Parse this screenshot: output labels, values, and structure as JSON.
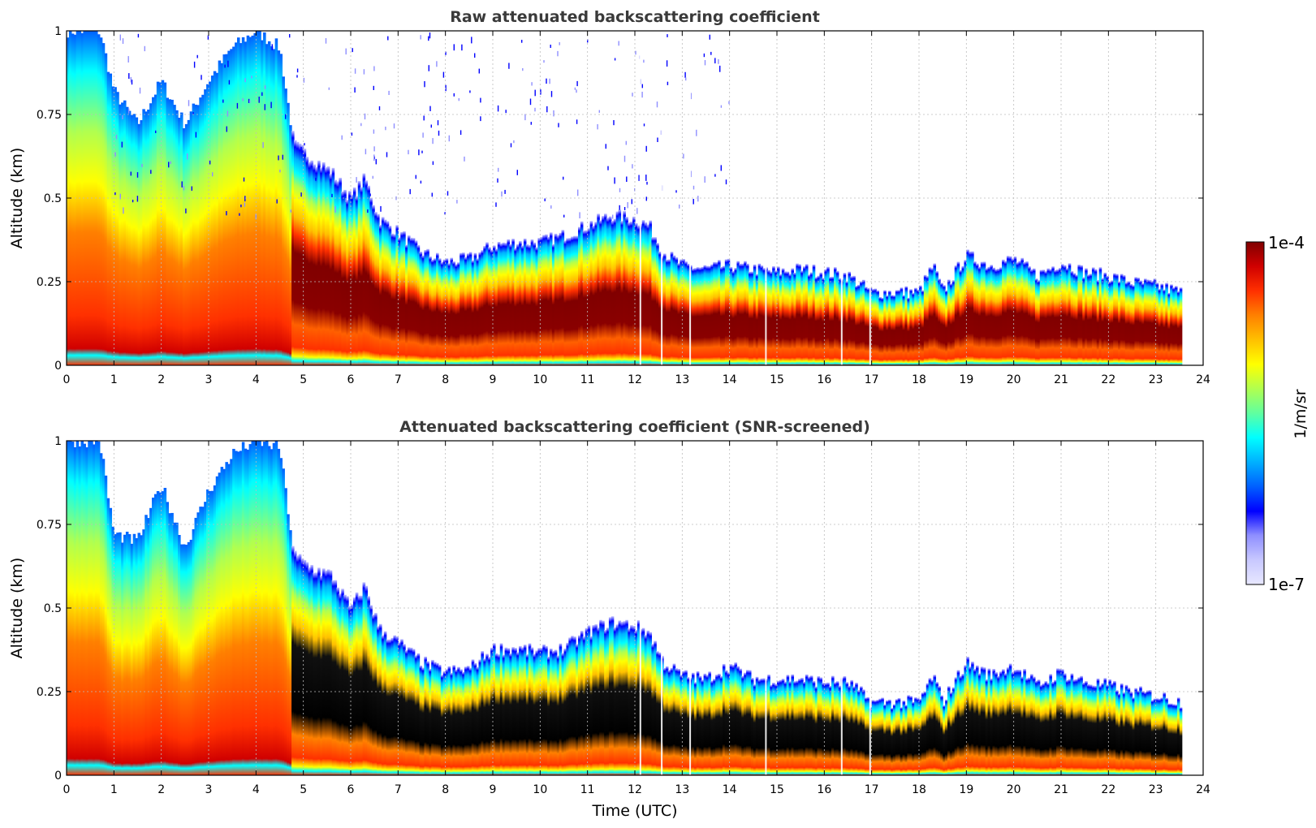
{
  "chart_data": [
    {
      "type": "heatmap",
      "title": "Raw attenuated backscattering coefficient",
      "xlabel": "",
      "ylabel": "Altitude (km)",
      "xlim": [
        0,
        24
      ],
      "ylim": [
        0,
        1
      ],
      "xticks": [
        "0",
        "1",
        "2",
        "3",
        "4",
        "5",
        "6",
        "7",
        "8",
        "9",
        "10",
        "11",
        "12",
        "13",
        "14",
        "15",
        "16",
        "17",
        "18",
        "19",
        "20",
        "21",
        "22",
        "23",
        "24"
      ],
      "yticks": [
        "0",
        "0.25",
        "0.5",
        "0.75",
        "1"
      ],
      "ytick_values": [
        0,
        0.25,
        0.5,
        0.75,
        1
      ],
      "grid": true,
      "data_end_hour": 23.55,
      "screened": false,
      "cloud_top_km": [
        [
          0,
          1.0
        ],
        [
          0.7,
          1.0
        ],
        [
          1.0,
          0.82
        ],
        [
          1.5,
          0.72
        ],
        [
          2.0,
          0.85
        ],
        [
          2.5,
          0.72
        ],
        [
          3.0,
          0.85
        ],
        [
          3.5,
          0.95
        ],
        [
          4.0,
          1.0
        ],
        [
          4.5,
          0.95
        ],
        [
          4.8,
          0.66
        ],
        [
          5.2,
          0.62
        ],
        [
          5.6,
          0.58
        ],
        [
          6.0,
          0.5
        ],
        [
          6.3,
          0.56
        ],
        [
          6.6,
          0.44
        ],
        [
          7.0,
          0.4
        ],
        [
          7.5,
          0.34
        ],
        [
          8.0,
          0.31
        ],
        [
          8.5,
          0.32
        ],
        [
          9.0,
          0.36
        ],
        [
          9.5,
          0.37
        ],
        [
          10.0,
          0.37
        ],
        [
          10.5,
          0.39
        ],
        [
          11.0,
          0.42
        ],
        [
          11.5,
          0.45
        ],
        [
          12.0,
          0.44
        ],
        [
          12.3,
          0.42
        ],
        [
          12.6,
          0.34
        ],
        [
          13.0,
          0.3
        ],
        [
          13.5,
          0.29
        ],
        [
          14.0,
          0.3
        ],
        [
          14.5,
          0.29
        ],
        [
          15.0,
          0.28
        ],
        [
          15.5,
          0.29
        ],
        [
          16.0,
          0.28
        ],
        [
          16.5,
          0.27
        ],
        [
          17.0,
          0.22
        ],
        [
          17.5,
          0.22
        ],
        [
          18.0,
          0.22
        ],
        [
          18.3,
          0.3
        ],
        [
          18.5,
          0.22
        ],
        [
          19.0,
          0.33
        ],
        [
          19.5,
          0.3
        ],
        [
          20.0,
          0.32
        ],
        [
          20.5,
          0.27
        ],
        [
          21.0,
          0.31
        ],
        [
          21.5,
          0.28
        ],
        [
          22.0,
          0.27
        ],
        [
          22.5,
          0.25
        ],
        [
          23.0,
          0.24
        ],
        [
          23.55,
          0.22
        ]
      ]
    },
    {
      "type": "heatmap",
      "title": "Attenuated backscattering coefficient (SNR-screened)",
      "xlabel": "Time (UTC)",
      "ylabel": "Altitude (km)",
      "xlim": [
        0,
        24
      ],
      "ylim": [
        0,
        1
      ],
      "xticks": [
        "0",
        "1",
        "2",
        "3",
        "4",
        "5",
        "6",
        "7",
        "8",
        "9",
        "10",
        "11",
        "12",
        "13",
        "14",
        "15",
        "16",
        "17",
        "18",
        "19",
        "20",
        "21",
        "22",
        "23",
        "24"
      ],
      "yticks": [
        "0",
        "0.25",
        "0.5",
        "0.75",
        "1"
      ],
      "ytick_values": [
        0,
        0.25,
        0.5,
        0.75,
        1
      ],
      "grid": true,
      "data_end_hour": 23.55,
      "screened": true,
      "cloud_top_km": [
        [
          0,
          1.0
        ],
        [
          0.7,
          1.0
        ],
        [
          1.0,
          0.72
        ],
        [
          1.5,
          0.7
        ],
        [
          2.0,
          0.87
        ],
        [
          2.5,
          0.68
        ],
        [
          3.0,
          0.85
        ],
        [
          3.5,
          0.96
        ],
        [
          4.0,
          1.0
        ],
        [
          4.5,
          0.98
        ],
        [
          4.8,
          0.66
        ],
        [
          5.2,
          0.62
        ],
        [
          5.6,
          0.6
        ],
        [
          6.0,
          0.5
        ],
        [
          6.3,
          0.57
        ],
        [
          6.6,
          0.44
        ],
        [
          7.0,
          0.4
        ],
        [
          7.5,
          0.34
        ],
        [
          8.0,
          0.31
        ],
        [
          8.5,
          0.32
        ],
        [
          9.0,
          0.38
        ],
        [
          9.5,
          0.38
        ],
        [
          10.0,
          0.37
        ],
        [
          10.5,
          0.38
        ],
        [
          11.0,
          0.43
        ],
        [
          11.5,
          0.46
        ],
        [
          12.0,
          0.45
        ],
        [
          12.3,
          0.43
        ],
        [
          12.6,
          0.34
        ],
        [
          13.0,
          0.3
        ],
        [
          13.5,
          0.29
        ],
        [
          14.0,
          0.33
        ],
        [
          14.5,
          0.29
        ],
        [
          15.0,
          0.29
        ],
        [
          15.5,
          0.29
        ],
        [
          16.0,
          0.28
        ],
        [
          16.5,
          0.28
        ],
        [
          17.0,
          0.22
        ],
        [
          17.5,
          0.22
        ],
        [
          18.0,
          0.22
        ],
        [
          18.3,
          0.3
        ],
        [
          18.5,
          0.22
        ],
        [
          19.0,
          0.34
        ],
        [
          19.5,
          0.3
        ],
        [
          20.0,
          0.33
        ],
        [
          20.5,
          0.27
        ],
        [
          21.0,
          0.31
        ],
        [
          21.5,
          0.28
        ],
        [
          22.0,
          0.27
        ],
        [
          22.5,
          0.25
        ],
        [
          23.0,
          0.24
        ],
        [
          23.55,
          0.22
        ]
      ]
    }
  ],
  "colorbar": {
    "label": "1/m/sr",
    "max_label": "1e-4",
    "min_label": "1e-7",
    "colormap": "jet",
    "low_color": "#e8e8ff",
    "high_color": "#800000"
  }
}
